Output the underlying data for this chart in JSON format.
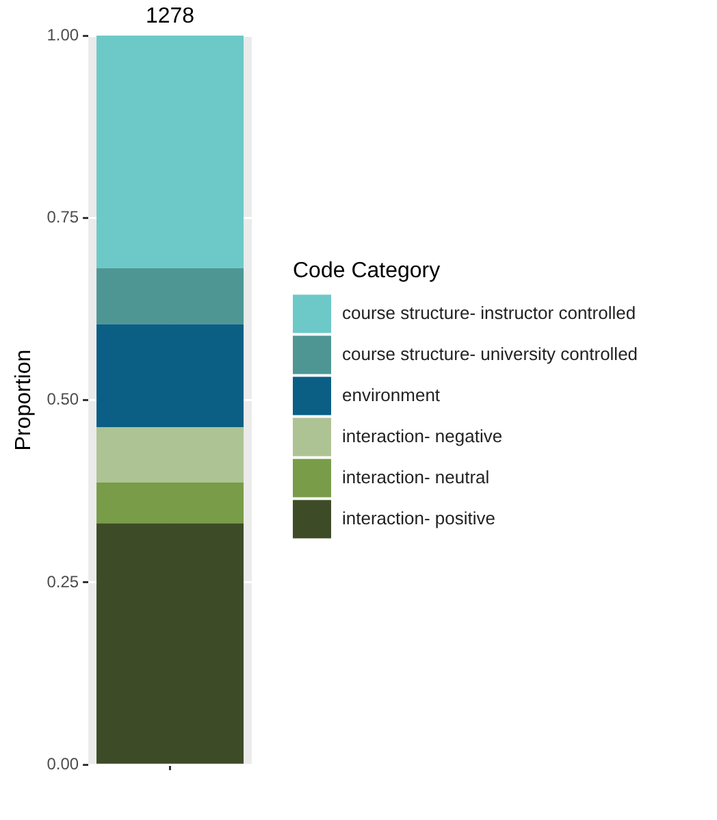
{
  "chart_data": {
    "type": "bar",
    "stacked": true,
    "ylabel": "Proportion",
    "legend_title": "Code Category",
    "legend": "right",
    "grid": true,
    "categories": [
      null
    ],
    "ylim": [
      0,
      1
    ],
    "yticks": [
      {
        "value": 0,
        "label": "0.00"
      },
      {
        "value": 0.25,
        "label": "0.25"
      },
      {
        "value": 0.5,
        "label": "0.50"
      },
      {
        "value": 0.75,
        "label": "0.75"
      },
      {
        "value": 1,
        "label": "1.00"
      }
    ],
    "series": [
      {
        "name": "interaction- positive",
        "color": "#3d4c27",
        "values": [
          0.331
        ]
      },
      {
        "name": "interaction- neutral",
        "color": "#789c48",
        "values": [
          0.056
        ]
      },
      {
        "name": "interaction- negative",
        "color": "#adc393",
        "values": [
          0.076
        ]
      },
      {
        "name": "environment",
        "color": "#0b5f85",
        "values": [
          0.141
        ]
      },
      {
        "name": "course structure- university controlled",
        "color": "#4e9694",
        "values": [
          0.077
        ]
      },
      {
        "name": "course structure- instructor controlled",
        "color": "#6cc9c8",
        "values": [
          0.319
        ]
      }
    ],
    "annotations": [
      {
        "text": "1278",
        "y": 1
      }
    ]
  }
}
